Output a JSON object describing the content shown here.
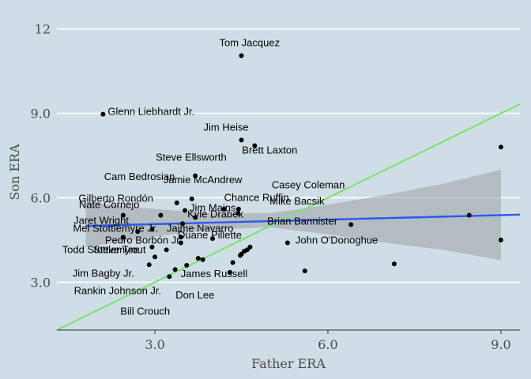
{
  "colors": {
    "background": "#cfdee6",
    "gridline": "#ffffff",
    "point": "#000000",
    "regression_line": "#2b57f0",
    "confidence_band": "#9aa0a2",
    "identity_line": "#7ee36e"
  },
  "chart_data": {
    "type": "scatter",
    "xlabel": "Father ERA",
    "ylabel": "Son ERA",
    "xlim": [
      1.3,
      9.33
    ],
    "ylim": [
      1.3,
      12.55
    ],
    "xticks": [
      {
        "value": 3.0,
        "label": "3.0"
      },
      {
        "value": 6.0,
        "label": "6.0"
      },
      {
        "value": 9.0,
        "label": "9.0"
      }
    ],
    "yticks": [
      {
        "value": 3.0,
        "label": "3.0"
      },
      {
        "value": 6.0,
        "label": "6.0"
      },
      {
        "value": 9.0,
        "label": "9.0"
      },
      {
        "value": 12.0,
        "label": "12"
      }
    ],
    "grid": true,
    "points": [
      {
        "x": 4.5,
        "y": 11.05,
        "label": "Tom Jacquez"
      },
      {
        "x": 2.1,
        "y": 8.97,
        "label": "Glenn Liebhardt Jr."
      },
      {
        "x": 4.5,
        "y": 8.05,
        "label": "Jim Heise"
      },
      {
        "x": 4.73,
        "y": 7.85,
        "label": "Brett Laxton"
      },
      {
        "x": 3.7,
        "y": 6.78,
        "label": "Steve Ellsworth"
      },
      {
        "x": 3.38,
        "y": 5.82,
        "label": "Cam Bedrosian"
      },
      {
        "x": 3.64,
        "y": 5.96,
        "label": "Jamie McAndrew"
      },
      {
        "x": 4.45,
        "y": 5.6,
        "label": "Casey Coleman"
      },
      {
        "x": 3.1,
        "y": 5.38,
        "label": "Gilberto Rondón"
      },
      {
        "x": 4.2,
        "y": 5.6,
        "label": "Chance Ruffin"
      },
      {
        "x": 2.45,
        "y": 5.38,
        "label": "Nate Cornejo"
      },
      {
        "x": 4.44,
        "y": 5.45,
        "label": "Mike Bacsik"
      },
      {
        "x": 3.52,
        "y": 5.55,
        "label": "Jim Mains"
      },
      {
        "x": 3.7,
        "y": 5.3,
        "label": "Kyle Drabek"
      },
      {
        "x": 3.48,
        "y": 5.08,
        "label": "Jaret Wright"
      },
      {
        "x": 6.4,
        "y": 5.05,
        "label": "Brian Bannister"
      },
      {
        "x": 3.45,
        "y": 4.6,
        "label": "Jaime Navarro"
      },
      {
        "x": 2.95,
        "y": 4.88,
        "label": "Mel Stottlemyre Jr."
      },
      {
        "x": 3.45,
        "y": 4.4,
        "label": "Pedro Borbón Jr."
      },
      {
        "x": 5.3,
        "y": 4.4,
        "label": "John O'Donoghue"
      },
      {
        "x": 4.0,
        "y": 4.55,
        "label": "Duane Pillette"
      },
      {
        "x": 3.2,
        "y": 4.15,
        "label": "Todd Stottlemyre"
      },
      {
        "x": 3.0,
        "y": 3.9,
        "label": "Steve Trout"
      },
      {
        "x": 2.9,
        "y": 3.62,
        "label": "Jim Bagby Jr."
      },
      {
        "x": 3.35,
        "y": 3.45,
        "label": "Rankin Johnson Jr."
      },
      {
        "x": 3.25,
        "y": 3.2,
        "label": "Bill Crouch"
      },
      {
        "x": 3.75,
        "y": 3.85,
        "label": "James Russell"
      },
      {
        "x": 3.55,
        "y": 3.6,
        "label": "Don Lee"
      },
      {
        "x": 2.45,
        "y": 4.6
      },
      {
        "x": 2.7,
        "y": 4.8
      },
      {
        "x": 2.95,
        "y": 4.25
      },
      {
        "x": 3.83,
        "y": 3.8
      },
      {
        "x": 4.35,
        "y": 3.7
      },
      {
        "x": 4.3,
        "y": 3.35
      },
      {
        "x": 4.5,
        "y": 4.0
      },
      {
        "x": 4.55,
        "y": 4.1
      },
      {
        "x": 4.6,
        "y": 4.15
      },
      {
        "x": 4.65,
        "y": 4.25
      },
      {
        "x": 4.48,
        "y": 3.95
      },
      {
        "x": 5.6,
        "y": 3.4
      },
      {
        "x": 7.15,
        "y": 3.65
      },
      {
        "x": 8.45,
        "y": 5.38
      },
      {
        "x": 9.0,
        "y": 7.8
      },
      {
        "x": 9.0,
        "y": 4.5
      }
    ],
    "regression_line": {
      "x": [
        1.8,
        9.33
      ],
      "y": [
        5.0,
        5.4
      ]
    },
    "confidence_band": {
      "x": [
        1.8,
        3.0,
        4.0,
        5.0,
        6.0,
        7.0,
        8.0,
        9.0
      ],
      "lower": [
        4.25,
        4.62,
        4.87,
        4.95,
        4.7,
        4.4,
        4.15,
        3.78
      ],
      "upper": [
        5.85,
        5.6,
        5.45,
        5.45,
        5.75,
        6.1,
        6.5,
        7.0
      ]
    },
    "identity_line": {
      "x": [
        1.3,
        9.33
      ],
      "y": [
        1.3,
        9.33
      ]
    }
  }
}
